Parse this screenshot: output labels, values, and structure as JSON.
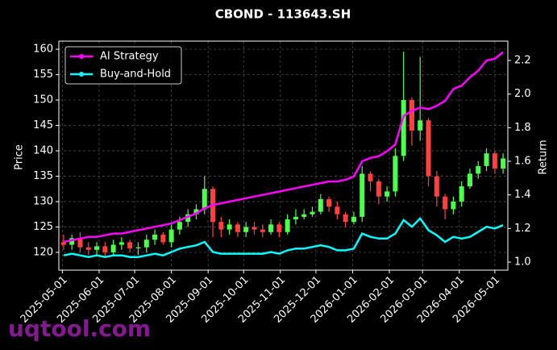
{
  "chart_data": {
    "type": "candlestick",
    "title": "CBOND - 113643.SH",
    "ylabel": "Price",
    "y2label": "Return",
    "watermark": "uqtool.com",
    "up_color": "#4cff4c",
    "down_color": "#ff4040",
    "legend": "upper left",
    "grid": true,
    "x": [
      "2025-05-02",
      "2025-05-09",
      "2025-05-16",
      "2025-05-23",
      "2025-05-30",
      "2025-06-06",
      "2025-06-13",
      "2025-06-20",
      "2025-06-27",
      "2025-07-04",
      "2025-07-11",
      "2025-07-18",
      "2025-07-25",
      "2025-08-01",
      "2025-08-08",
      "2025-08-15",
      "2025-08-22",
      "2025-08-29",
      "2025-09-05",
      "2025-09-12",
      "2025-09-19",
      "2025-09-26",
      "2025-10-03",
      "2025-10-10",
      "2025-10-17",
      "2025-10-24",
      "2025-10-31",
      "2025-11-07",
      "2025-11-14",
      "2025-11-21",
      "2025-11-28",
      "2025-12-05",
      "2025-12-12",
      "2025-12-19",
      "2025-12-26",
      "2026-01-02",
      "2026-01-09",
      "2026-01-16",
      "2026-01-23",
      "2026-01-30",
      "2026-02-06",
      "2026-02-13",
      "2026-02-20",
      "2026-02-27",
      "2026-03-06",
      "2026-03-13",
      "2026-03-20",
      "2026-03-27",
      "2026-04-03",
      "2026-04-10",
      "2026-04-17",
      "2026-04-24",
      "2026-05-01",
      "2026-05-08"
    ],
    "open": [
      122.0,
      121.5,
      122.8,
      121.0,
      120.5,
      121.2,
      120.0,
      121.5,
      122.0,
      120.8,
      121.0,
      122.5,
      123.5,
      122.0,
      124.5,
      126.0,
      127.5,
      128.5,
      132.5,
      126.0,
      124.5,
      125.5,
      124.0,
      125.0,
      124.5,
      124.0,
      125.5,
      124.0,
      126.5,
      127.0,
      127.5,
      128.0,
      130.5,
      129.0,
      127.5,
      126.0,
      127.0,
      135.5,
      134.0,
      131.0,
      132.0,
      139.0,
      150.0,
      144.0,
      146.0,
      135.0,
      131.0,
      128.5,
      130.0,
      133.0,
      135.5,
      137.0,
      139.5,
      136.5
    ],
    "high": [
      123.5,
      123.5,
      124.0,
      122.0,
      122.0,
      122.0,
      122.5,
      123.0,
      122.5,
      122.0,
      123.5,
      124.5,
      124.0,
      125.5,
      127.0,
      128.5,
      129.5,
      135.0,
      133.0,
      127.0,
      126.5,
      126.0,
      126.0,
      126.0,
      125.5,
      126.5,
      126.0,
      127.5,
      128.5,
      128.5,
      129.0,
      131.5,
      131.0,
      130.0,
      128.0,
      128.0,
      137.0,
      136.0,
      134.5,
      133.0,
      140.5,
      159.5,
      150.5,
      158.5,
      146.5,
      136.0,
      131.5,
      131.0,
      134.0,
      136.5,
      138.0,
      140.5,
      140.0,
      139.5
    ],
    "low": [
      120.5,
      120.5,
      120.0,
      119.5,
      119.5,
      119.0,
      119.5,
      120.5,
      120.0,
      119.5,
      120.0,
      121.5,
      121.5,
      121.0,
      123.5,
      125.0,
      126.5,
      127.5,
      123.0,
      123.0,
      123.5,
      123.0,
      123.0,
      123.5,
      123.0,
      123.5,
      123.0,
      123.5,
      125.5,
      126.5,
      127.0,
      127.5,
      128.0,
      126.5,
      125.0,
      125.5,
      126.0,
      132.0,
      129.5,
      130.0,
      131.0,
      138.0,
      141.0,
      142.0,
      133.0,
      129.0,
      126.5,
      127.5,
      129.0,
      132.5,
      134.5,
      136.0,
      135.5,
      135.5
    ],
    "close": [
      121.5,
      122.8,
      121.0,
      120.5,
      121.2,
      120.0,
      121.5,
      122.0,
      120.8,
      121.0,
      122.5,
      123.5,
      122.0,
      124.5,
      126.0,
      127.5,
      128.5,
      132.5,
      126.0,
      124.5,
      125.5,
      124.0,
      125.0,
      124.5,
      124.0,
      125.5,
      124.0,
      126.5,
      127.0,
      127.5,
      128.0,
      130.5,
      129.0,
      127.5,
      126.0,
      127.0,
      135.5,
      134.0,
      131.0,
      132.0,
      139.0,
      150.0,
      144.0,
      146.0,
      135.0,
      131.0,
      128.5,
      130.0,
      133.0,
      135.5,
      137.0,
      139.5,
      136.5,
      138.5
    ],
    "series": [
      {
        "name": "AI Strategy",
        "color": "#ff00ff",
        "axis": "y2",
        "values": [
          1.12,
          1.13,
          1.14,
          1.15,
          1.15,
          1.16,
          1.17,
          1.17,
          1.18,
          1.19,
          1.2,
          1.21,
          1.22,
          1.23,
          1.25,
          1.27,
          1.29,
          1.32,
          1.34,
          1.35,
          1.36,
          1.37,
          1.38,
          1.39,
          1.4,
          1.41,
          1.42,
          1.43,
          1.44,
          1.45,
          1.46,
          1.47,
          1.48,
          1.48,
          1.49,
          1.51,
          1.6,
          1.62,
          1.63,
          1.66,
          1.7,
          1.87,
          1.9,
          1.92,
          1.91,
          1.93,
          1.96,
          2.03,
          2.05,
          2.1,
          2.14,
          2.2,
          2.21,
          2.25
        ]
      },
      {
        "name": "Buy-and-Hold",
        "color": "#00ffff",
        "axis": "y2",
        "values": [
          1.04,
          1.05,
          1.04,
          1.03,
          1.04,
          1.03,
          1.04,
          1.04,
          1.03,
          1.03,
          1.04,
          1.05,
          1.04,
          1.06,
          1.08,
          1.09,
          1.1,
          1.12,
          1.06,
          1.05,
          1.05,
          1.05,
          1.05,
          1.05,
          1.05,
          1.06,
          1.05,
          1.07,
          1.08,
          1.08,
          1.09,
          1.1,
          1.09,
          1.07,
          1.07,
          1.08,
          1.17,
          1.15,
          1.14,
          1.14,
          1.17,
          1.25,
          1.21,
          1.26,
          1.19,
          1.16,
          1.12,
          1.15,
          1.14,
          1.15,
          1.18,
          1.21,
          1.2,
          1.22
        ]
      }
    ],
    "xlim": [
      "2025-04-28",
      "2026-05-12"
    ],
    "xticks": [
      "2025-05-01",
      "2025-06-01",
      "2025-07-01",
      "2025-08-01",
      "2025-09-01",
      "2025-10-01",
      "2025-11-01",
      "2025-12-01",
      "2026-01-01",
      "2026-02-01",
      "2026-03-01",
      "2026-04-01",
      "2026-05-01"
    ],
    "ylim": [
      116.5,
      161.6
    ],
    "yticks": [
      120,
      125,
      130,
      135,
      140,
      145,
      150,
      155,
      160
    ],
    "y2lim": [
      0.952,
      2.315
    ],
    "y2ticks": [
      {
        "value": 1,
        "label": "1.0"
      },
      1.2,
      1.4,
      1.6,
      1.8,
      {
        "value": 2,
        "label": "2.0"
      },
      2.2
    ]
  }
}
